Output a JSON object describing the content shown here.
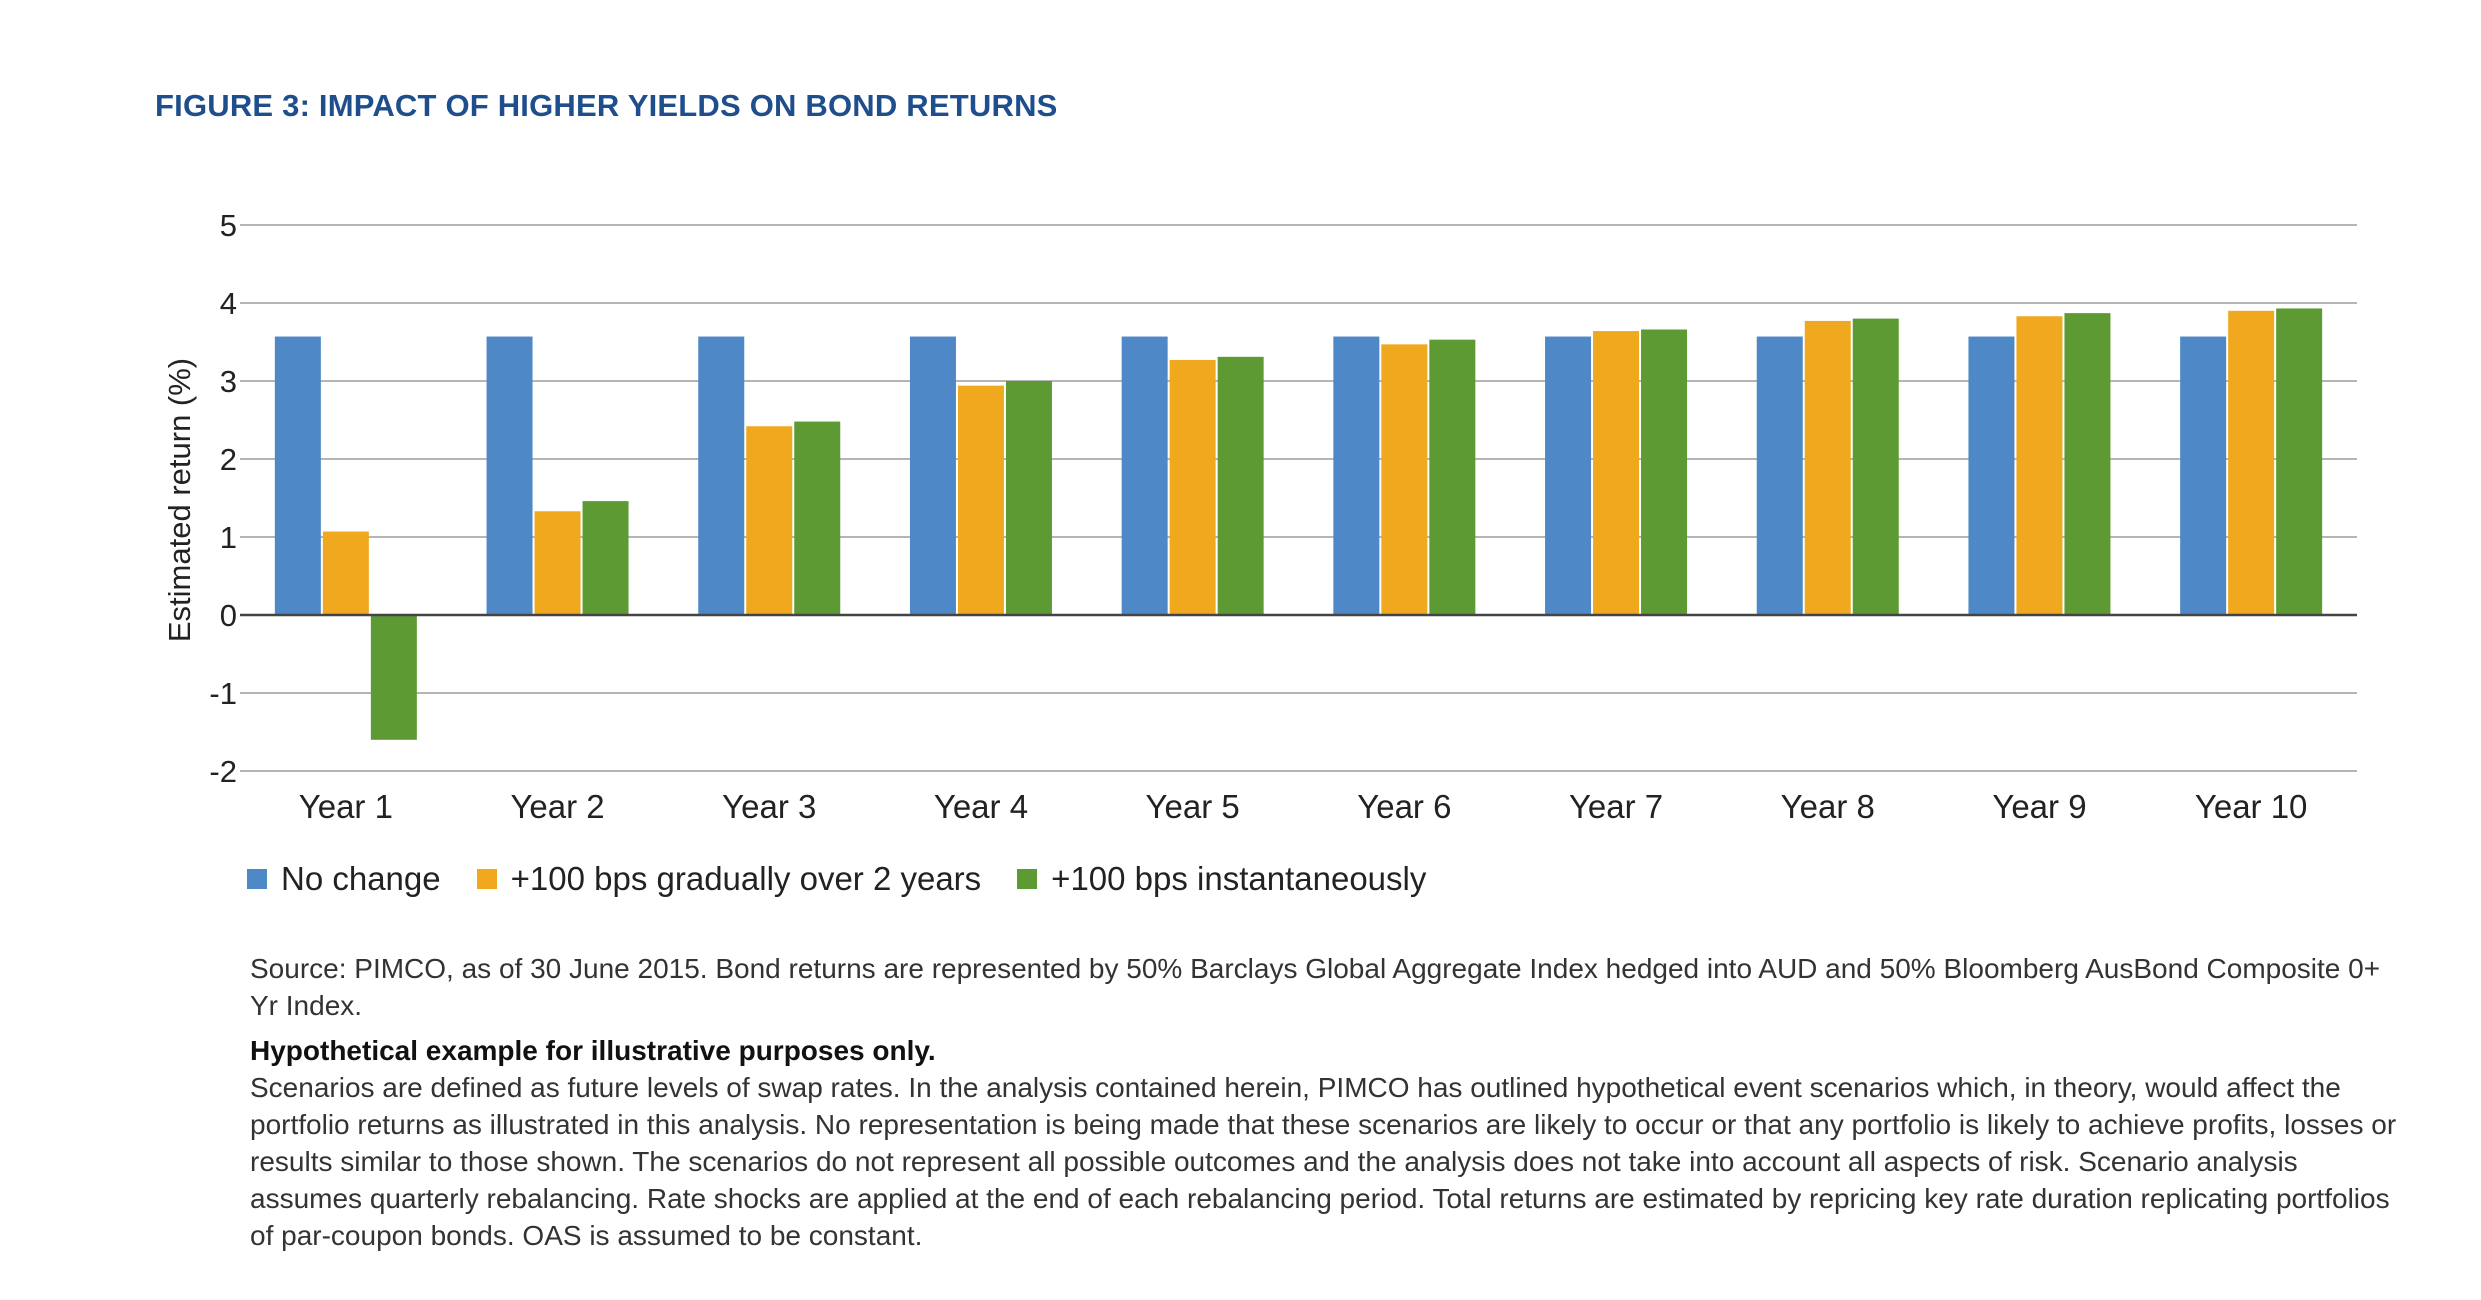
{
  "figure_title": "FIGURE 3: IMPACT OF HIGHER YIELDS ON BOND RETURNS",
  "chart_data": {
    "type": "bar",
    "title": "",
    "xlabel": "",
    "ylabel": "Estimated return (%)",
    "ylim": [
      -2,
      5
    ],
    "yticks": [
      5,
      4,
      3,
      2,
      1,
      0,
      -1,
      -2
    ],
    "grid": true,
    "legend_position": "bottom-left",
    "categories": [
      "Year 1",
      "Year 2",
      "Year 3",
      "Year 4",
      "Year 5",
      "Year 6",
      "Year 7",
      "Year 8",
      "Year 9",
      "Year 10"
    ],
    "series": [
      {
        "name": "No change",
        "color": "#4f88c6",
        "values": [
          3.57,
          3.57,
          3.57,
          3.57,
          3.57,
          3.57,
          3.57,
          3.57,
          3.57,
          3.57
        ]
      },
      {
        "name": "+100 bps gradually over 2 years",
        "color": "#f0a81f",
        "values": [
          1.07,
          1.33,
          2.42,
          2.94,
          3.27,
          3.47,
          3.64,
          3.77,
          3.83,
          3.9
        ]
      },
      {
        "name": "+100 bps instantaneously",
        "color": "#5d9a34",
        "values": [
          -1.6,
          1.46,
          2.48,
          3.0,
          3.31,
          3.53,
          3.66,
          3.8,
          3.87,
          3.93
        ]
      }
    ]
  },
  "notes": {
    "source": "Source: PIMCO, as of 30 June 2015. Bond returns are represented by 50% Barclays Global Aggregate Index hedged into AUD and 50% Bloomberg AusBond Composite 0+ Yr Index.",
    "disclaimer_heading": "Hypothetical example for illustrative purposes only.",
    "disclaimer_body": "Scenarios are defined as future levels of swap rates. In the analysis contained herein, PIMCO has outlined hypothetical event scenarios which, in theory, would affect the portfolio returns as illustrated in this analysis. No representation is being made that these scenarios are likely to occur or that any portfolio is likely to achieve profits, losses or results similar to those shown. The scenarios do not represent all possible outcomes and the analysis does not take into account all aspects of risk. Scenario analysis assumes quarterly rebalancing. Rate shocks are applied at the end of each rebalancing period. Total returns are estimated by repricing key rate duration replicating portfolios of par-coupon bonds. OAS is assumed to be constant."
  }
}
